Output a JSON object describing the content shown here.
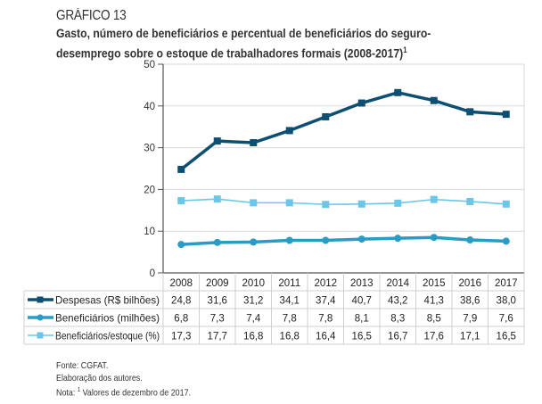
{
  "figure": {
    "label": "GRÁFICO 13",
    "title_line1": "Gasto, número de beneficiários e percentual de beneficiários do seguro-",
    "title_line2": "desemprego sobre o estoque de trabalhadores formais (2008-2017)",
    "title_footnote_mark": "1"
  },
  "chart_data": {
    "type": "line",
    "title": "Gasto, número de beneficiários e percentual de beneficiários do seguro-desemprego sobre o estoque de trabalhadores formais (2008-2017)",
    "xlabel": "",
    "ylabel": "",
    "x": [
      "2008",
      "2009",
      "2010",
      "2011",
      "2012",
      "2013",
      "2014",
      "2015",
      "2016",
      "2017"
    ],
    "ylim": [
      0,
      50
    ],
    "yticks": [
      0,
      10,
      20,
      30,
      40,
      50
    ],
    "grid": true,
    "legend_placement": "bottom (data table)",
    "series": [
      {
        "name": "Despesas (R$ bilhões)",
        "color": "#0d4f73",
        "marker": "square",
        "values": [
          24.8,
          31.6,
          31.2,
          34.1,
          37.4,
          40.7,
          43.2,
          41.3,
          38.6,
          38.0
        ],
        "labels": [
          "24,8",
          "31,6",
          "31,2",
          "34,1",
          "37,4",
          "40,7",
          "43,2",
          "41,3",
          "38,6",
          "38,0"
        ]
      },
      {
        "name": "Beneficiários (milhões)",
        "color": "#2a9bc4",
        "marker": "circle",
        "values": [
          6.8,
          7.3,
          7.4,
          7.8,
          7.8,
          8.1,
          8.3,
          8.5,
          7.9,
          7.6
        ],
        "labels": [
          "6,8",
          "7,3",
          "7,4",
          "7,8",
          "7,8",
          "8,1",
          "8,3",
          "8,5",
          "7,9",
          "7,6"
        ]
      },
      {
        "name": "Beneficiários/estoque (%)",
        "color": "#6cc6e8",
        "marker": "square",
        "values": [
          17.3,
          17.7,
          16.8,
          16.8,
          16.4,
          16.5,
          16.7,
          17.6,
          17.1,
          16.5
        ],
        "labels": [
          "17,3",
          "17,7",
          "16,8",
          "16,8",
          "16,4",
          "16,5",
          "16,7",
          "17,6",
          "17,1",
          "16,5"
        ]
      }
    ]
  },
  "notes": {
    "source": "Fonte: CGFAT.",
    "elaboration": "Elaboração dos autores.",
    "note_prefix": "Nota:",
    "note_mark": "1",
    "note_text": "Valores de dezembro de 2017."
  }
}
